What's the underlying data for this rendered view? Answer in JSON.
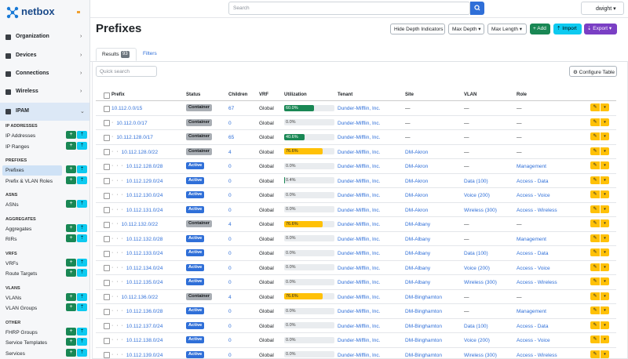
{
  "header": {
    "search": "Search",
    "user": "dwight"
  },
  "sidebar": {
    "brand": "netbox",
    "menus": [
      "Organization",
      "Devices",
      "Connections",
      "Wireless",
      "IPAM"
    ],
    "groups": [
      {
        "title": "IP ADDRESSES",
        "items": [
          "IP Addresses",
          "IP Ranges"
        ]
      },
      {
        "title": "PREFIXES",
        "items": [
          "Prefixes",
          "Prefix & VLAN Roles"
        ]
      },
      {
        "title": "ASNS",
        "items": [
          "ASNs"
        ]
      },
      {
        "title": "AGGREGATES",
        "items": [
          "Aggregates",
          "RIRs"
        ]
      },
      {
        "title": "VRFS",
        "items": [
          "VRFs",
          "Route Targets"
        ]
      },
      {
        "title": "VLANS",
        "items": [
          "VLANs",
          "VLAN Groups"
        ]
      },
      {
        "title": "OTHER",
        "items": [
          "FHRP Groups",
          "Service Templates",
          "Services"
        ]
      }
    ]
  },
  "page": {
    "title": "Prefixes",
    "buttons": [
      "Hide Depth Indicators",
      "Max Depth",
      "Max Length",
      "Add",
      "Import",
      "Export"
    ],
    "tabs": {
      "results": "Results",
      "count": "93",
      "filters": "Filters"
    },
    "quick_search": "Quick search",
    "configure_table": "Configure Table"
  },
  "table": {
    "columns": [
      "Prefix",
      "Status",
      "Children",
      "VRF",
      "Utilization",
      "Tenant",
      "Site",
      "VLAN",
      "Role"
    ],
    "rows": [
      {
        "prefix": "10.112.0.0/15",
        "status": "Container",
        "children": 67,
        "vrf": "Global",
        "utilization": "60.0%",
        "tenant": "Dunder-Mifflin, Inc.",
        "site": "—",
        "vlan": "—",
        "role": "—"
      },
      {
        "depth": "·",
        "prefix": "10.112.0.0/17",
        "status": "Container",
        "children": 0,
        "vrf": "Global",
        "utilization": "0.0%",
        "tenant": "Dunder-Mifflin, Inc.",
        "site": "—",
        "vlan": "—",
        "role": "—"
      },
      {
        "depth": "·",
        "prefix": "10.112.128.0/17",
        "status": "Container",
        "children": 65,
        "vrf": "Global",
        "utilization": "40.6%",
        "tenant": "Dunder-Mifflin, Inc.",
        "site": "—",
        "vlan": "—",
        "role": "—"
      },
      {
        "depth": "· ·",
        "prefix": "10.112.128.0/22",
        "status": "Container",
        "children": 4,
        "vrf": "Global",
        "utilization": "76.6%",
        "tenant": "Dunder-Mifflin, Inc.",
        "site": "DM-Akron",
        "vlan": "—",
        "role": "—"
      },
      {
        "depth": "· · ·",
        "prefix": "10.112.128.0/28",
        "status": "Active",
        "children": 0,
        "vrf": "Global",
        "utilization": "0.0%",
        "tenant": "Dunder-Mifflin, Inc.",
        "site": "DM-Akron",
        "vlan": "—",
        "role": "Management"
      },
      {
        "depth": "· · ·",
        "prefix": "10.112.129.0/24",
        "status": "Active",
        "children": 0,
        "vrf": "Global",
        "utilization": "0.4%",
        "tenant": "Dunder-Mifflin, Inc.",
        "site": "DM-Akron",
        "vlan": "Data (100)",
        "role": "Access - Data"
      },
      {
        "depth": "· · ·",
        "prefix": "10.112.130.0/24",
        "status": "Active",
        "children": 0,
        "vrf": "Global",
        "utilization": "0.0%",
        "tenant": "Dunder-Mifflin, Inc.",
        "site": "DM-Akron",
        "vlan": "Voice (200)",
        "role": "Access - Voice"
      },
      {
        "depth": "· · ·",
        "prefix": "10.112.131.0/24",
        "status": "Active",
        "children": 0,
        "vrf": "Global",
        "utilization": "0.0%",
        "tenant": "Dunder-Mifflin, Inc.",
        "site": "DM-Akron",
        "vlan": "Wireless (300)",
        "role": "Access - Wireless"
      },
      {
        "depth": "· ·",
        "prefix": "10.112.132.0/22",
        "status": "Container",
        "children": 4,
        "vrf": "Global",
        "utilization": "76.6%",
        "tenant": "Dunder-Mifflin, Inc.",
        "site": "DM-Albany",
        "vlan": "—",
        "role": "—"
      },
      {
        "depth": "· · ·",
        "prefix": "10.112.132.0/28",
        "status": "Active",
        "children": 0,
        "vrf": "Global",
        "utilization": "0.0%",
        "tenant": "Dunder-Mifflin, Inc.",
        "site": "DM-Albany",
        "vlan": "—",
        "role": "Management"
      },
      {
        "depth": "· · ·",
        "prefix": "10.112.133.0/24",
        "status": "Active",
        "children": 0,
        "vrf": "Global",
        "utilization": "0.0%",
        "tenant": "Dunder-Mifflin, Inc.",
        "site": "DM-Albany",
        "vlan": "Data (100)",
        "role": "Access - Data"
      },
      {
        "depth": "· · ·",
        "prefix": "10.112.134.0/24",
        "status": "Active",
        "children": 0,
        "vrf": "Global",
        "utilization": "0.0%",
        "tenant": "Dunder-Mifflin, Inc.",
        "site": "DM-Albany",
        "vlan": "Voice (200)",
        "role": "Access - Voice"
      },
      {
        "depth": "· · ·",
        "prefix": "10.112.135.0/24",
        "status": "Active",
        "children": 0,
        "vrf": "Global",
        "utilization": "0.0%",
        "tenant": "Dunder-Mifflin, Inc.",
        "site": "DM-Albany",
        "vlan": "Wireless (300)",
        "role": "Access - Wireless"
      },
      {
        "depth": "· ·",
        "prefix": "10.112.136.0/22",
        "status": "Container",
        "children": 4,
        "vrf": "Global",
        "utilization": "76.6%",
        "tenant": "Dunder-Mifflin, Inc.",
        "site": "DM-Binghamton",
        "vlan": "—",
        "role": "—"
      },
      {
        "depth": "· · ·",
        "prefix": "10.112.136.0/28",
        "status": "Active",
        "children": 0,
        "vrf": "Global",
        "utilization": "0.0%",
        "tenant": "Dunder-Mifflin, Inc.",
        "site": "DM-Binghamton",
        "vlan": "—",
        "role": "Management"
      },
      {
        "depth": "· · ·",
        "prefix": "10.112.137.0/24",
        "status": "Active",
        "children": 0,
        "vrf": "Global",
        "utilization": "0.0%",
        "tenant": "Dunder-Mifflin, Inc.",
        "site": "DM-Binghamton",
        "vlan": "Data (100)",
        "role": "Access - Data"
      },
      {
        "depth": "· · ·",
        "prefix": "10.112.138.0/24",
        "status": "Active",
        "children": 0,
        "vrf": "Global",
        "utilization": "0.0%",
        "tenant": "Dunder-Mifflin, Inc.",
        "site": "DM-Binghamton",
        "vlan": "Voice (200)",
        "role": "Access - Voice"
      },
      {
        "depth": "· · ·",
        "prefix": "10.112.139.0/24",
        "status": "Active",
        "children": 0,
        "vrf": "Global",
        "utilization": "0.0%",
        "tenant": "Dunder-Mifflin, Inc.",
        "site": "DM-Binghamton",
        "vlan": "Wireless (300)",
        "role": "Access - Wireless"
      }
    ]
  }
}
